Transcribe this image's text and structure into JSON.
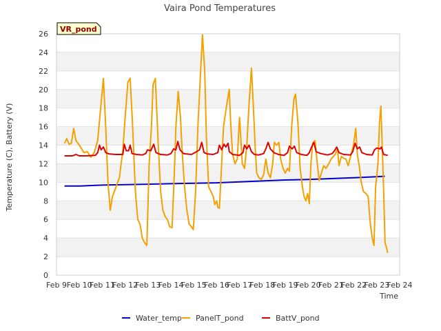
{
  "chart_data": {
    "type": "line",
    "title": "Vaira Pond Temperatures",
    "xlabel": "Time",
    "ylabel": "Temperature (C), Battery (V)",
    "tag": "VR_pond",
    "xlim": [
      9,
      24
    ],
    "ylim": [
      0,
      26
    ],
    "x_ticks": [
      {
        "x": 9,
        "label": "Feb 9"
      },
      {
        "x": 10,
        "label": "Feb 10"
      },
      {
        "x": 11,
        "label": "Feb 11"
      },
      {
        "x": 12,
        "label": "Feb 12"
      },
      {
        "x": 13,
        "label": "Feb 13"
      },
      {
        "x": 14,
        "label": "Feb 14"
      },
      {
        "x": 15,
        "label": "Feb 15"
      },
      {
        "x": 16,
        "label": "Feb 16"
      },
      {
        "x": 17,
        "label": "Feb 17"
      },
      {
        "x": 18,
        "label": "Feb 18"
      },
      {
        "x": 19,
        "label": "Feb 19"
      },
      {
        "x": 20,
        "label": "Feb 20"
      },
      {
        "x": 21,
        "label": "Feb 21"
      },
      {
        "x": 22,
        "label": "Feb 22"
      },
      {
        "x": 23,
        "label": "Feb 23"
      },
      {
        "x": 24,
        "label": "Feb 24"
      }
    ],
    "y_ticks": [
      0,
      2,
      4,
      6,
      8,
      10,
      12,
      14,
      16,
      18,
      20,
      22,
      24,
      26
    ],
    "grid": "horizontal bands",
    "legend": "bottom",
    "series": [
      {
        "name": "Water_temp",
        "color": "#0000cc",
        "points": [
          [
            9.35,
            9.6
          ],
          [
            10,
            9.6
          ],
          [
            11,
            9.7
          ],
          [
            12,
            9.75
          ],
          [
            13,
            9.8
          ],
          [
            14,
            9.85
          ],
          [
            15,
            9.9
          ],
          [
            16,
            9.95
          ],
          [
            17,
            10.05
          ],
          [
            18,
            10.15
          ],
          [
            19,
            10.25
          ],
          [
            20,
            10.3
          ],
          [
            21,
            10.4
          ],
          [
            22,
            10.5
          ],
          [
            23,
            10.6
          ],
          [
            23.35,
            10.65
          ]
        ]
      },
      {
        "name": "PanelT_pond",
        "color": "#f5a000",
        "points": [
          [
            9.35,
            14.2
          ],
          [
            9.45,
            14.7
          ],
          [
            9.55,
            14.1
          ],
          [
            9.65,
            14.2
          ],
          [
            9.75,
            15.8
          ],
          [
            9.85,
            14.5
          ],
          [
            10,
            14.0
          ],
          [
            10.2,
            13.2
          ],
          [
            10.35,
            13.3
          ],
          [
            10.5,
            12.7
          ],
          [
            10.65,
            13.2
          ],
          [
            10.8,
            14.5
          ],
          [
            10.95,
            18.5
          ],
          [
            11.05,
            21.2
          ],
          [
            11.15,
            16.0
          ],
          [
            11.25,
            10.0
          ],
          [
            11.35,
            7.0
          ],
          [
            11.45,
            8.5
          ],
          [
            11.6,
            9.5
          ],
          [
            11.75,
            10.5
          ],
          [
            11.9,
            13.5
          ],
          [
            12.0,
            17.0
          ],
          [
            12.12,
            20.8
          ],
          [
            12.22,
            21.2
          ],
          [
            12.32,
            16.5
          ],
          [
            12.45,
            9.0
          ],
          [
            12.55,
            6.0
          ],
          [
            12.65,
            5.5
          ],
          [
            12.75,
            4.0
          ],
          [
            12.85,
            3.5
          ],
          [
            12.95,
            3.2
          ],
          [
            13.05,
            12.0
          ],
          [
            13.15,
            16.0
          ],
          [
            13.22,
            20.5
          ],
          [
            13.32,
            21.2
          ],
          [
            13.45,
            14.0
          ],
          [
            13.55,
            9.0
          ],
          [
            13.65,
            7.0
          ],
          [
            13.75,
            6.3
          ],
          [
            13.85,
            6.0
          ],
          [
            13.95,
            5.2
          ],
          [
            14.05,
            5.1
          ],
          [
            14.15,
            11.0
          ],
          [
            14.22,
            16.0
          ],
          [
            14.32,
            19.8
          ],
          [
            14.42,
            17.0
          ],
          [
            14.5,
            13.0
          ],
          [
            14.6,
            9.5
          ],
          [
            14.7,
            7.0
          ],
          [
            14.8,
            5.5
          ],
          [
            14.9,
            5.2
          ],
          [
            14.98,
            4.9
          ],
          [
            15.08,
            9.0
          ],
          [
            15.18,
            16.0
          ],
          [
            15.28,
            21.0
          ],
          [
            15.38,
            25.9
          ],
          [
            15.48,
            22.0
          ],
          [
            15.55,
            15.0
          ],
          [
            15.65,
            9.5
          ],
          [
            15.75,
            9.0
          ],
          [
            15.85,
            8.5
          ],
          [
            15.92,
            7.6
          ],
          [
            16.0,
            8.0
          ],
          [
            16.05,
            7.3
          ],
          [
            16.12,
            7.2
          ],
          [
            16.2,
            11.0
          ],
          [
            16.3,
            16.0
          ],
          [
            16.45,
            18.5
          ],
          [
            16.55,
            20.0
          ],
          [
            16.62,
            16.0
          ],
          [
            16.7,
            13.0
          ],
          [
            16.8,
            12.0
          ],
          [
            16.9,
            12.5
          ],
          [
            17.0,
            17.0
          ],
          [
            17.05,
            15.0
          ],
          [
            17.12,
            12.0
          ],
          [
            17.22,
            11.5
          ],
          [
            17.32,
            14.0
          ],
          [
            17.42,
            18.5
          ],
          [
            17.52,
            22.3
          ],
          [
            17.6,
            18.5
          ],
          [
            17.68,
            14.0
          ],
          [
            17.75,
            11.0
          ],
          [
            17.85,
            10.5
          ],
          [
            17.95,
            10.3
          ],
          [
            18.05,
            10.8
          ],
          [
            18.15,
            12.5
          ],
          [
            18.25,
            11.0
          ],
          [
            18.35,
            10.5
          ],
          [
            18.45,
            12.0
          ],
          [
            18.52,
            14.3
          ],
          [
            18.62,
            14.0
          ],
          [
            18.72,
            14.3
          ],
          [
            18.8,
            12.5
          ],
          [
            18.9,
            11.5
          ],
          [
            19.0,
            11.0
          ],
          [
            19.1,
            11.5
          ],
          [
            19.18,
            11.2
          ],
          [
            19.28,
            16.0
          ],
          [
            19.38,
            19.0
          ],
          [
            19.45,
            19.5
          ],
          [
            19.55,
            16.5
          ],
          [
            19.65,
            11.5
          ],
          [
            19.75,
            9.5
          ],
          [
            19.82,
            8.5
          ],
          [
            19.9,
            8.0
          ],
          [
            19.98,
            8.8
          ],
          [
            20.05,
            7.7
          ],
          [
            20.12,
            12.0
          ],
          [
            20.2,
            14.2
          ],
          [
            20.3,
            14.5
          ],
          [
            20.38,
            12.5
          ],
          [
            20.48,
            10.2
          ],
          [
            20.58,
            11.0
          ],
          [
            20.68,
            11.8
          ],
          [
            20.78,
            11.5
          ],
          [
            20.9,
            12.0
          ],
          [
            21.0,
            12.5
          ],
          [
            21.1,
            12.8
          ],
          [
            21.18,
            13.0
          ],
          [
            21.28,
            13.6
          ],
          [
            21.35,
            11.8
          ],
          [
            21.45,
            12.8
          ],
          [
            21.55,
            12.6
          ],
          [
            21.65,
            12.5
          ],
          [
            21.75,
            11.8
          ],
          [
            21.88,
            13.0
          ],
          [
            21.98,
            14.0
          ],
          [
            22.08,
            15.8
          ],
          [
            22.15,
            13.0
          ],
          [
            22.25,
            11.5
          ],
          [
            22.32,
            10.0
          ],
          [
            22.42,
            9.0
          ],
          [
            22.52,
            8.8
          ],
          [
            22.62,
            8.5
          ],
          [
            22.72,
            5.5
          ],
          [
            22.8,
            4.0
          ],
          [
            22.88,
            3.2
          ],
          [
            22.95,
            9.5
          ],
          [
            23.05,
            12.0
          ],
          [
            23.12,
            16.5
          ],
          [
            23.18,
            18.2
          ],
          [
            23.25,
            13.0
          ],
          [
            23.3,
            9.0
          ],
          [
            23.36,
            3.5
          ],
          [
            23.42,
            3.0
          ],
          [
            23.48,
            2.4
          ]
        ]
      },
      {
        "name": "BattV_pond",
        "color": "#e00000",
        "points": [
          [
            9.35,
            12.85
          ],
          [
            9.7,
            12.85
          ],
          [
            9.85,
            13.0
          ],
          [
            10.0,
            12.85
          ],
          [
            10.3,
            12.85
          ],
          [
            10.7,
            12.9
          ],
          [
            10.8,
            13.2
          ],
          [
            10.88,
            14.0
          ],
          [
            10.95,
            13.5
          ],
          [
            11.05,
            13.8
          ],
          [
            11.15,
            13.2
          ],
          [
            11.3,
            13.05
          ],
          [
            11.6,
            13.0
          ],
          [
            11.9,
            13.0
          ],
          [
            11.96,
            14.1
          ],
          [
            12.05,
            13.4
          ],
          [
            12.15,
            13.4
          ],
          [
            12.22,
            14.0
          ],
          [
            12.3,
            13.1
          ],
          [
            12.5,
            13.0
          ],
          [
            12.75,
            12.95
          ],
          [
            12.9,
            13.1
          ],
          [
            12.98,
            13.5
          ],
          [
            13.12,
            13.4
          ],
          [
            13.25,
            14.1
          ],
          [
            13.35,
            13.2
          ],
          [
            13.55,
            13.0
          ],
          [
            13.85,
            12.95
          ],
          [
            14.0,
            13.1
          ],
          [
            14.12,
            13.6
          ],
          [
            14.22,
            13.5
          ],
          [
            14.3,
            14.4
          ],
          [
            14.4,
            13.5
          ],
          [
            14.55,
            13.1
          ],
          [
            14.9,
            13.0
          ],
          [
            15.05,
            13.2
          ],
          [
            15.25,
            13.5
          ],
          [
            15.35,
            14.3
          ],
          [
            15.45,
            13.2
          ],
          [
            15.6,
            13.05
          ],
          [
            15.85,
            13.0
          ],
          [
            16.05,
            13.2
          ],
          [
            16.12,
            14.0
          ],
          [
            16.22,
            13.5
          ],
          [
            16.32,
            14.1
          ],
          [
            16.4,
            13.8
          ],
          [
            16.5,
            14.2
          ],
          [
            16.55,
            13.3
          ],
          [
            16.7,
            13.0
          ],
          [
            17.0,
            12.9
          ],
          [
            17.15,
            13.2
          ],
          [
            17.22,
            14.0
          ],
          [
            17.32,
            13.6
          ],
          [
            17.42,
            14.0
          ],
          [
            17.52,
            13.3
          ],
          [
            17.65,
            13.0
          ],
          [
            17.85,
            12.95
          ],
          [
            18.05,
            13.1
          ],
          [
            18.15,
            13.6
          ],
          [
            18.25,
            14.3
          ],
          [
            18.35,
            13.6
          ],
          [
            18.5,
            13.2
          ],
          [
            18.7,
            13.0
          ],
          [
            18.95,
            12.9
          ],
          [
            19.1,
            13.2
          ],
          [
            19.18,
            13.9
          ],
          [
            19.3,
            13.6
          ],
          [
            19.4,
            13.9
          ],
          [
            19.5,
            13.2
          ],
          [
            19.7,
            13.0
          ],
          [
            19.95,
            12.9
          ],
          [
            20.05,
            13.2
          ],
          [
            20.15,
            13.8
          ],
          [
            20.25,
            14.3
          ],
          [
            20.35,
            13.3
          ],
          [
            20.55,
            13.1
          ],
          [
            20.85,
            12.95
          ],
          [
            21.05,
            13.1
          ],
          [
            21.15,
            13.4
          ],
          [
            21.25,
            13.8
          ],
          [
            21.35,
            13.2
          ],
          [
            21.55,
            13.0
          ],
          [
            21.85,
            12.95
          ],
          [
            21.95,
            13.3
          ],
          [
            22.05,
            14.2
          ],
          [
            22.15,
            13.6
          ],
          [
            22.25,
            13.8
          ],
          [
            22.35,
            13.2
          ],
          [
            22.55,
            13.0
          ],
          [
            22.8,
            12.95
          ],
          [
            22.9,
            13.5
          ],
          [
            23.0,
            13.7
          ],
          [
            23.15,
            13.6
          ],
          [
            23.2,
            13.8
          ],
          [
            23.3,
            13.0
          ],
          [
            23.48,
            12.9
          ]
        ]
      }
    ]
  }
}
